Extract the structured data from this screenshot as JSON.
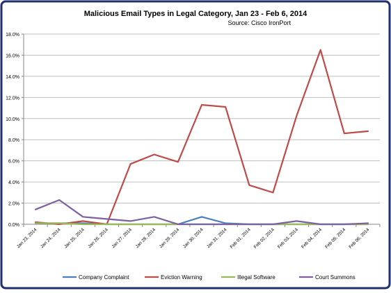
{
  "chart_data": {
    "type": "line",
    "title": "Malicious Email Types in Legal Category, Jan 23 - Feb 6, 2014",
    "subtitle": "Source: Cisco IronPort",
    "categories": [
      "Jan 23, 2014",
      "Jan 24, 2014",
      "Jan 25, 2014",
      "Jan 26, 2014",
      "Jan 27, 2014",
      "Jan 28, 2014",
      "Jan 29, 2014",
      "Jan 30, 2014",
      "Jan 31, 2014",
      "Feb 01, 2014",
      "Feb 02, 2014",
      "Feb 03, 2014",
      "Feb 04, 2014",
      "Feb 05, 2014",
      "Feb 06, 2014"
    ],
    "y_ticks": [
      "0.0%",
      "2.0%",
      "4.0%",
      "6.0%",
      "8.0%",
      "10.0%",
      "12.0%",
      "14.0%",
      "16.0%",
      "18.0%"
    ],
    "ylim": [
      0,
      18
    ],
    "grid": "horizontal",
    "legend_position": "bottom",
    "series": [
      {
        "name": "Company Complaint",
        "color": "#4a7ebb",
        "values": [
          0.1,
          0.1,
          0.1,
          0.0,
          0.0,
          0.0,
          0.0,
          0.7,
          0.1,
          0.0,
          0.0,
          0.0,
          0.0,
          0.0,
          0.0
        ]
      },
      {
        "name": "Eviction Warning",
        "color": "#be4b48",
        "values": [
          0.2,
          0.0,
          0.3,
          0.0,
          5.7,
          6.6,
          5.9,
          11.3,
          11.1,
          3.7,
          3.0,
          10.3,
          16.5,
          8.6,
          8.8
        ]
      },
      {
        "name": "Illegal Software",
        "color": "#98b954",
        "values": [
          0.1,
          0.1,
          0.0,
          0.0,
          0.0,
          0.0,
          0.0,
          0.0,
          0.0,
          0.0,
          0.0,
          0.0,
          0.0,
          0.0,
          0.0
        ]
      },
      {
        "name": "Court Summons",
        "color": "#7d60a0",
        "values": [
          1.4,
          2.3,
          0.7,
          0.5,
          0.3,
          0.7,
          0.0,
          0.0,
          0.0,
          0.0,
          0.0,
          0.3,
          0.0,
          0.0,
          0.1
        ]
      }
    ]
  },
  "colors": {
    "frame_border": "#1f2f6f",
    "gridline": "#bfbfbf",
    "axis": "#868686"
  }
}
